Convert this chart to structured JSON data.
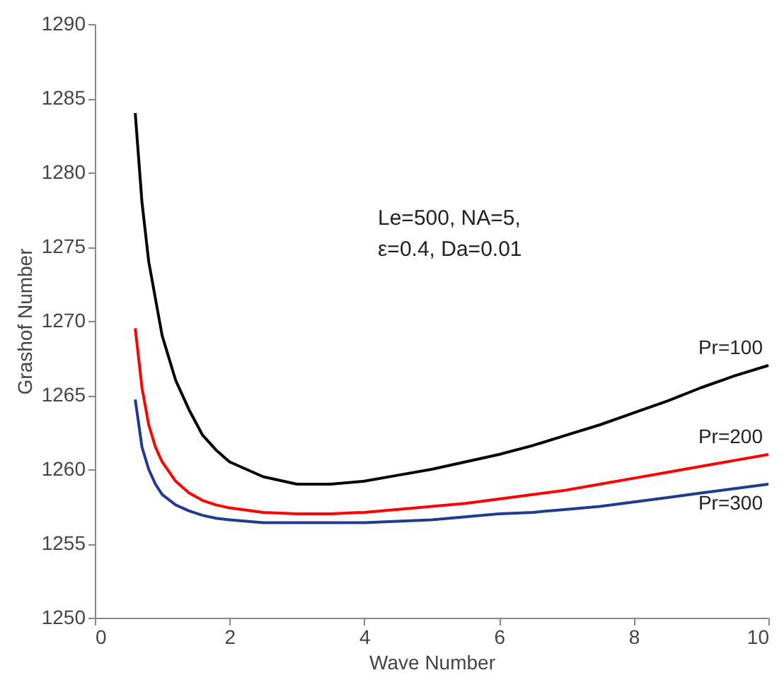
{
  "chart_data": {
    "type": "line",
    "xlabel": "Wave Number",
    "ylabel": "Grashof  Number",
    "x": [
      0.6,
      0.7,
      0.8,
      0.9,
      1.0,
      1.2,
      1.4,
      1.6,
      1.8,
      2.0,
      2.5,
      3.0,
      3.5,
      4.0,
      4.5,
      5.0,
      5.5,
      6.0,
      6.5,
      7.0,
      7.5,
      8.0,
      8.5,
      9.0,
      9.5,
      10.0
    ],
    "series": [
      {
        "name": "Pr=100",
        "color": "#000000",
        "values": [
          1284,
          1278,
          1274,
          1271.5,
          1269,
          1266,
          1264,
          1262.3,
          1261.3,
          1260.5,
          1259.5,
          1259,
          1259,
          1259.2,
          1259.6,
          1260,
          1260.5,
          1261,
          1261.6,
          1262.3,
          1263,
          1263.8,
          1264.6,
          1265.5,
          1266.3,
          1267
        ]
      },
      {
        "name": "Pr=200",
        "color": "#ff0000",
        "values": [
          1269.5,
          1265.5,
          1263,
          1261.5,
          1260.5,
          1259.2,
          1258.4,
          1257.9,
          1257.6,
          1257.4,
          1257.1,
          1257,
          1257,
          1257.1,
          1257.3,
          1257.5,
          1257.7,
          1258,
          1258.3,
          1258.6,
          1259,
          1259.4,
          1259.8,
          1260.2,
          1260.6,
          1261
        ]
      },
      {
        "name": "Pr=300",
        "color": "#1f3a8f",
        "values": [
          1264.7,
          1261.5,
          1260,
          1259,
          1258.3,
          1257.6,
          1257.2,
          1256.9,
          1256.7,
          1256.6,
          1256.4,
          1256.4,
          1256.4,
          1256.4,
          1256.5,
          1256.6,
          1256.8,
          1257,
          1257.1,
          1257.3,
          1257.5,
          1257.8,
          1258.1,
          1258.4,
          1258.7,
          1259
        ]
      }
    ],
    "annotations": [
      "Le=500, NA=5,\nε=0.4, Da=0.01"
    ],
    "xlim": [
      0,
      10
    ],
    "xticks": [
      0,
      2,
      4,
      6,
      8,
      10
    ],
    "ylim": [
      1250,
      1290
    ],
    "yticks": [
      1250,
      1255,
      1260,
      1265,
      1270,
      1275,
      1280,
      1285,
      1290
    ],
    "grid": false,
    "legend": false,
    "marker": "none",
    "line_style": "solid"
  }
}
